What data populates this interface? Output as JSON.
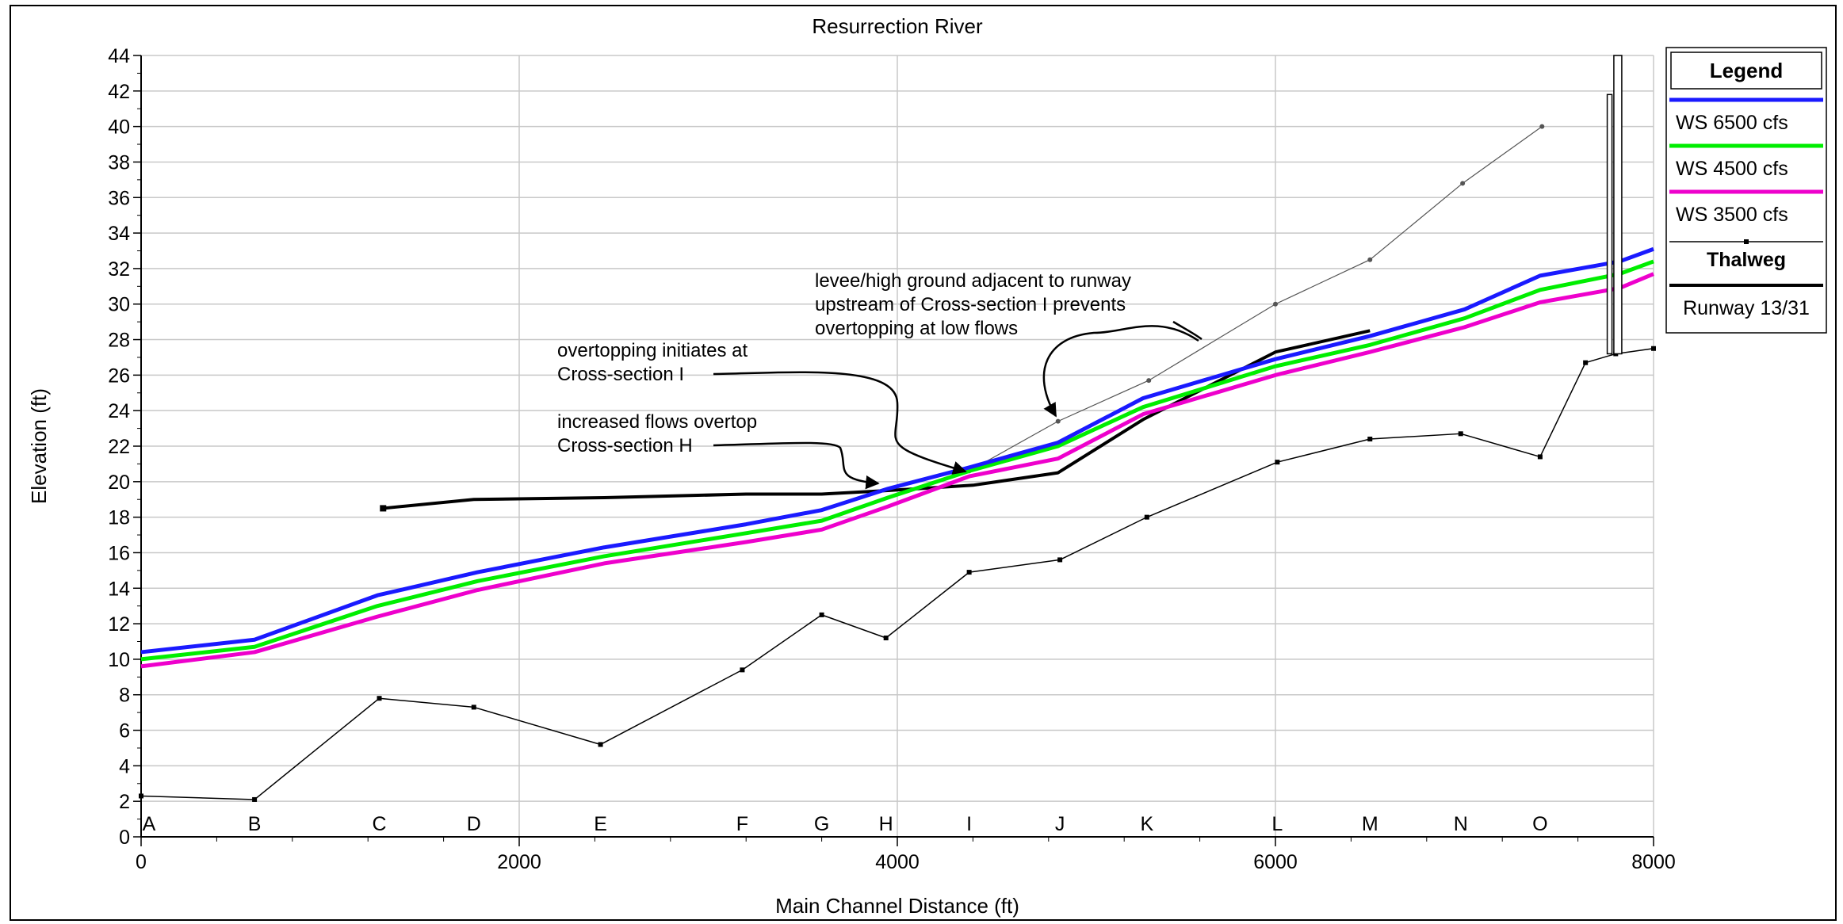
{
  "chart_data": {
    "type": "line",
    "title": "Resurrection River",
    "xlabel": "Main Channel Distance (ft)",
    "ylabel": "Elevation (ft)",
    "xlim": [
      0,
      8000
    ],
    "ylim": [
      0,
      44
    ],
    "x_ticks": [
      0,
      2000,
      4000,
      6000,
      8000
    ],
    "y_ticks": [
      0,
      2,
      4,
      6,
      8,
      10,
      12,
      14,
      16,
      18,
      20,
      22,
      24,
      26,
      28,
      30,
      32,
      34,
      36,
      38,
      40,
      42,
      44
    ],
    "grid": true,
    "legend_title": "Legend",
    "legend_position": "right",
    "series": [
      {
        "name": "WS  6500 cfs",
        "color": "#1a1aff",
        "width": 5,
        "x": [
          0,
          600,
          1250,
          1780,
          2450,
          3200,
          3600,
          3950,
          4380,
          4850,
          5300,
          6000,
          6500,
          7000,
          7400,
          7820,
          8000
        ],
        "y": [
          10.4,
          11.1,
          13.6,
          14.9,
          16.3,
          17.6,
          18.4,
          19.6,
          20.8,
          22.2,
          24.7,
          26.9,
          28.2,
          29.7,
          31.6,
          32.4,
          33.1
        ]
      },
      {
        "name": "WS  4500 cfs",
        "color": "#00ee00",
        "width": 5,
        "x": [
          0,
          600,
          1250,
          1780,
          2450,
          3200,
          3600,
          3950,
          4380,
          4850,
          5300,
          6000,
          6500,
          7000,
          7400,
          7820,
          8000
        ],
        "y": [
          10.0,
          10.7,
          13.0,
          14.4,
          15.8,
          17.1,
          17.8,
          19.1,
          20.6,
          22.0,
          24.2,
          26.5,
          27.7,
          29.2,
          30.8,
          31.7,
          32.4
        ]
      },
      {
        "name": "WS  3500 cfs",
        "color": "#ee00cc",
        "width": 5,
        "x": [
          0,
          600,
          1250,
          1780,
          2450,
          3200,
          3600,
          3950,
          4380,
          4850,
          5300,
          6000,
          6500,
          7000,
          7400,
          7820,
          8000
        ],
        "y": [
          9.6,
          10.4,
          12.4,
          13.9,
          15.4,
          16.6,
          17.3,
          18.6,
          20.3,
          21.3,
          23.8,
          26.0,
          27.3,
          28.7,
          30.1,
          30.9,
          31.7
        ]
      },
      {
        "name": "Thalweg",
        "color": "#000000",
        "width": 1.5,
        "markers": true,
        "x": [
          0,
          600,
          1260,
          1760,
          2430,
          3180,
          3600,
          3940,
          4380,
          4860,
          5320,
          6010,
          6500,
          6980,
          7400,
          7640,
          7800,
          8000
        ],
        "y": [
          2.3,
          2.1,
          7.8,
          7.3,
          5.2,
          9.4,
          12.5,
          11.2,
          14.9,
          15.6,
          18.0,
          21.1,
          22.4,
          22.7,
          21.4,
          26.7,
          27.2,
          27.5
        ]
      },
      {
        "name": "Runway 13/31",
        "color": "#000000",
        "width": 4,
        "x": [
          1280,
          1760,
          2450,
          3200,
          3600,
          3950,
          4400,
          4850,
          5300,
          6000,
          6500
        ],
        "y": [
          18.5,
          19.0,
          19.1,
          19.3,
          19.3,
          19.5,
          19.8,
          20.5,
          23.5,
          27.3,
          28.5
        ]
      }
    ],
    "terrain_line": {
      "x": [
        4380,
        4850,
        5330,
        6000,
        6500,
        6990,
        7410
      ],
      "y": [
        20.6,
        23.4,
        25.7,
        30.0,
        32.5,
        36.8,
        40.0
      ]
    },
    "cross_sections": [
      {
        "label": "A",
        "x": 0
      },
      {
        "label": "B",
        "x": 600
      },
      {
        "label": "C",
        "x": 1260
      },
      {
        "label": "D",
        "x": 1760
      },
      {
        "label": "E",
        "x": 2430
      },
      {
        "label": "F",
        "x": 3180
      },
      {
        "label": "G",
        "x": 3600
      },
      {
        "label": "H",
        "x": 3940
      },
      {
        "label": "I",
        "x": 4380
      },
      {
        "label": "J",
        "x": 4860
      },
      {
        "label": "K",
        "x": 5320
      },
      {
        "label": "L",
        "x": 6010
      },
      {
        "label": "M",
        "x": 6500
      },
      {
        "label": "N",
        "x": 6980
      },
      {
        "label": "O",
        "x": 7400
      }
    ],
    "annotations": [
      {
        "lines": [
          "levee/high ground adjacent to runway",
          "upstream of Cross-section I prevents",
          "overtopping at low flows"
        ]
      },
      {
        "lines": [
          "overtopping initiates at",
          "Cross-section I"
        ]
      },
      {
        "lines": [
          "increased flows overtop",
          "Cross-section H"
        ]
      }
    ]
  }
}
